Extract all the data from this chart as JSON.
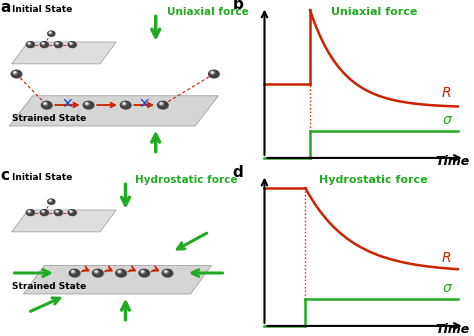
{
  "panel_b_title": "Uniaxial force",
  "panel_d_title": "Hydrostatic force",
  "label_R": "R",
  "label_sigma": "σ",
  "label_time": "Time",
  "green_color": "#22aa22",
  "red_color": "#cc2200",
  "blue_color": "#2244cc",
  "panel_a_label": "a",
  "panel_b_label": "b",
  "panel_c_label": "c",
  "panel_d_label": "d",
  "initial_state": "Initial State",
  "strained_state": "Strained State",
  "uniaxial_force": "Uniaxial force",
  "hydrostatic_force": "Hydrostatic force",
  "plate_color_light": "#d4d4d4",
  "plate_color_mid": "#c0c0c0",
  "plate_edge": "#999999",
  "sphere_color": "#404040",
  "sphere_highlight": "#888888"
}
